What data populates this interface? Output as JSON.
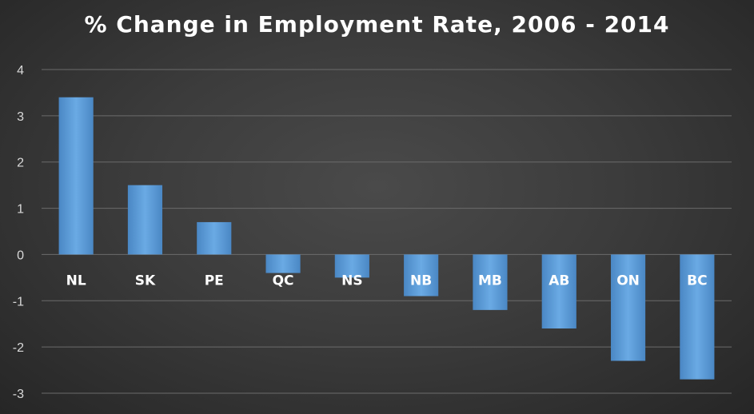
{
  "chart_data": {
    "type": "bar",
    "title": "% Change in Employment Rate, 2006 - 2014",
    "xlabel": "",
    "ylabel": "",
    "categories": [
      "NL",
      "SK",
      "PE",
      "QC",
      "NS",
      "NB",
      "MB",
      "AB",
      "ON",
      "BC"
    ],
    "values": [
      3.4,
      1.5,
      0.7,
      -0.4,
      -0.5,
      -0.9,
      -1.2,
      -1.6,
      -2.3,
      -2.7
    ],
    "ylim": [
      -3,
      4
    ],
    "yticks": [
      "4",
      "3",
      "2",
      "1",
      "0",
      "-1",
      "-2",
      "-3"
    ],
    "grid": true,
    "legend": "none",
    "colors": {
      "bar": "#5b9bd5",
      "bar_light": "#6aaae4",
      "bar_dark": "#4a87c4",
      "grid": "#6b6b6b",
      "text": "#ffffff",
      "tick_text": "#d9d9d9"
    }
  }
}
